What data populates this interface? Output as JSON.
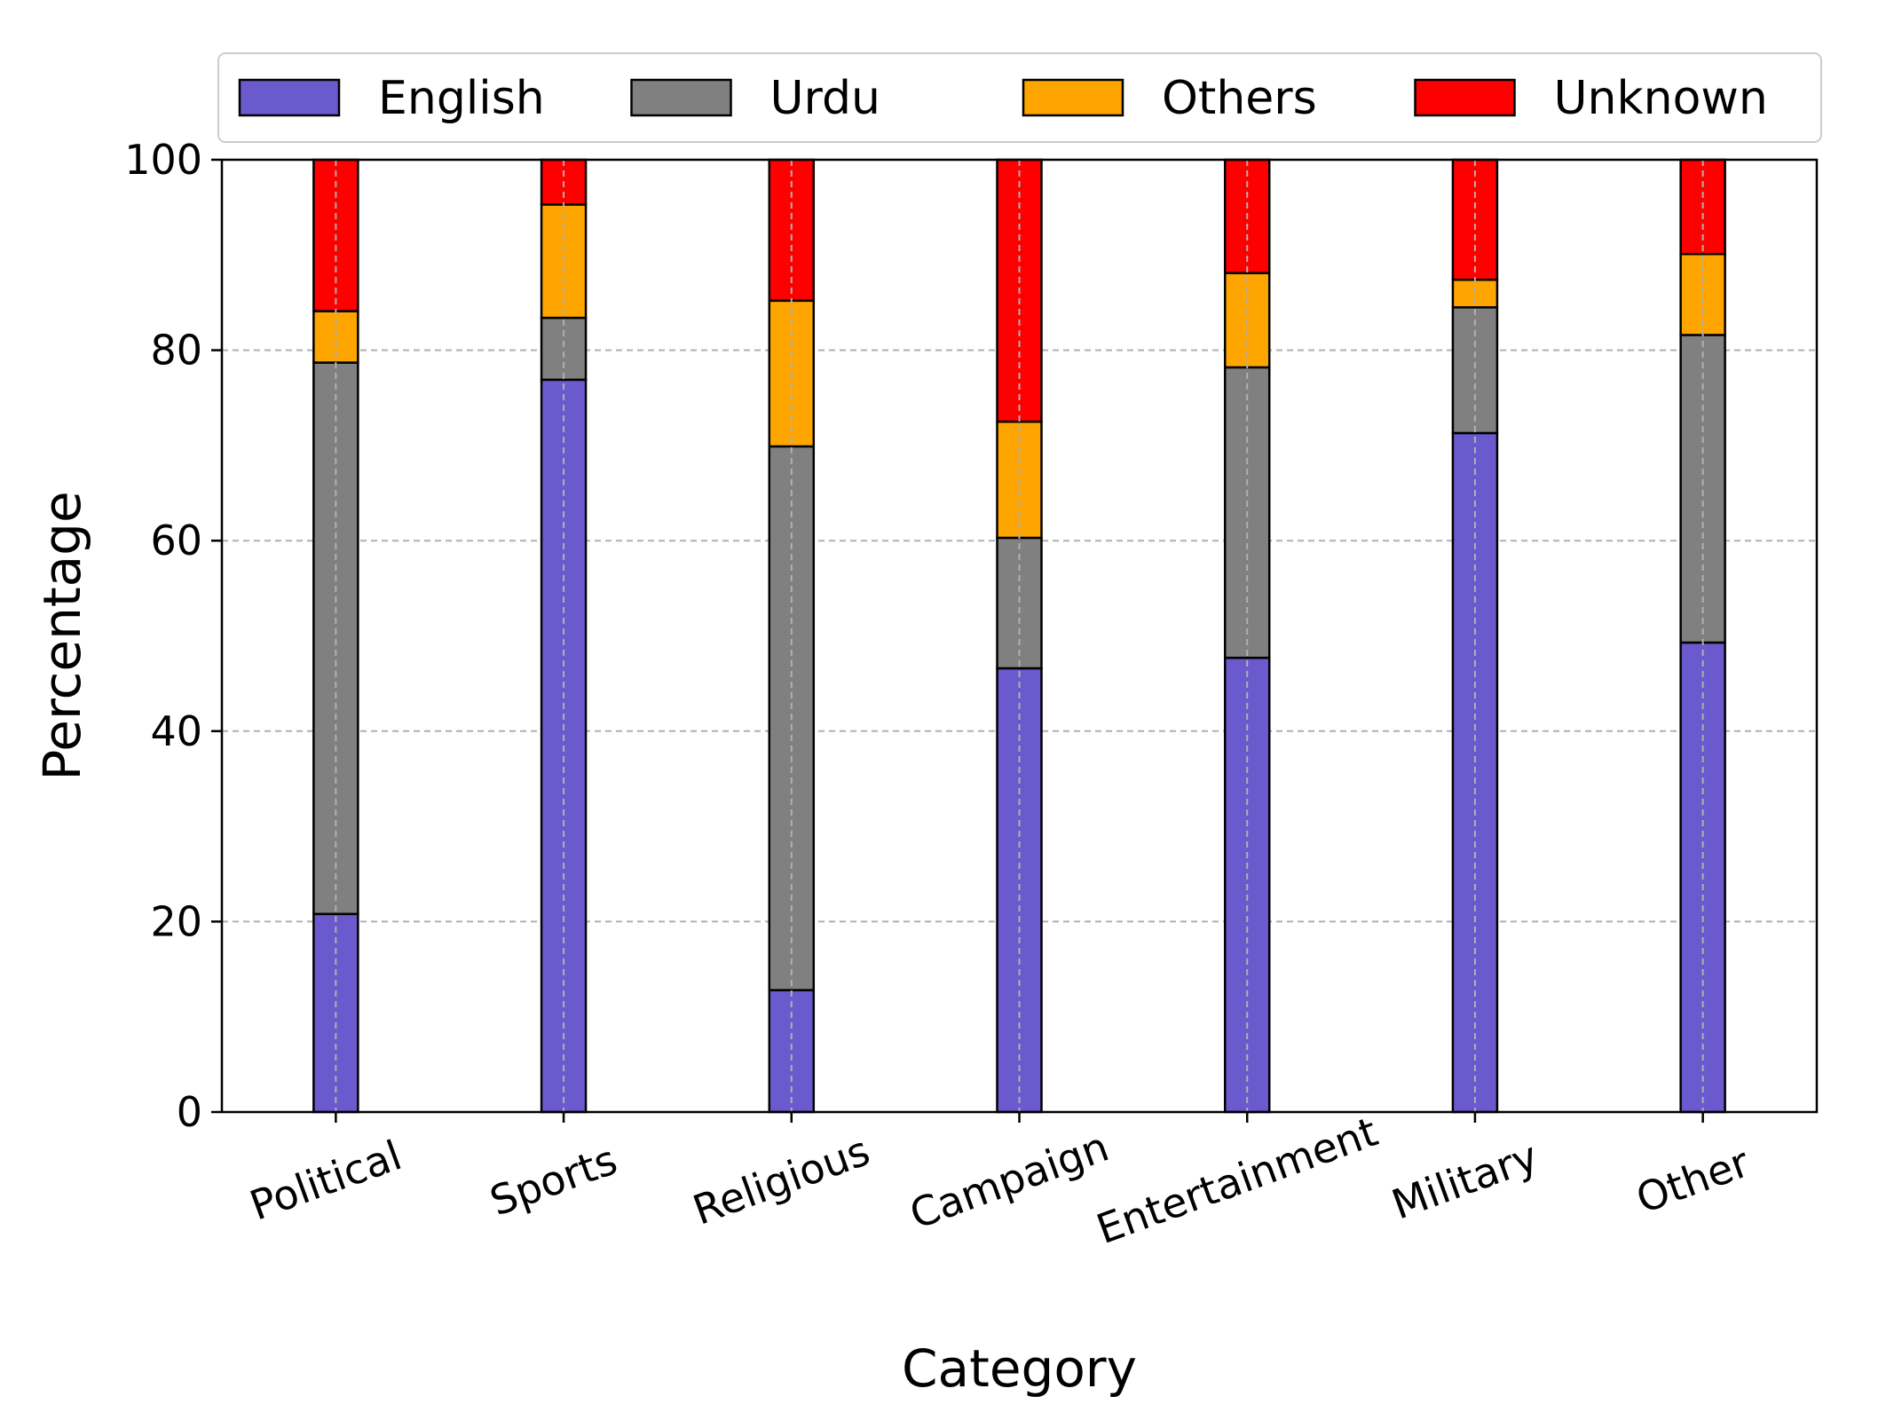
{
  "chart_data": {
    "type": "bar",
    "stacked": true,
    "title": "",
    "xlabel": "Category",
    "ylabel": "Percentage",
    "ylim": [
      0,
      100
    ],
    "yticks": [
      0,
      20,
      40,
      60,
      80,
      100
    ],
    "grid": true,
    "legend_position": "top",
    "categories": [
      "Political",
      "Sports",
      "Religious",
      "Campaign",
      "Entertainment",
      "Military",
      "Other"
    ],
    "series": [
      {
        "name": "English",
        "color": "#6a5acd",
        "values": [
          20.8,
          76.9,
          12.8,
          46.6,
          47.7,
          71.3,
          49.3
        ]
      },
      {
        "name": "Urdu",
        "color": "#808080",
        "values": [
          57.9,
          6.5,
          57.1,
          13.7,
          30.5,
          13.2,
          32.3
        ]
      },
      {
        "name": "Others",
        "color": "#ffa500",
        "values": [
          5.4,
          11.9,
          15.3,
          12.2,
          9.9,
          2.9,
          8.5
        ]
      },
      {
        "name": "Unknown",
        "color": "#ff0000",
        "values": [
          15.9,
          4.7,
          14.8,
          27.5,
          11.9,
          12.6,
          9.9
        ]
      }
    ]
  }
}
